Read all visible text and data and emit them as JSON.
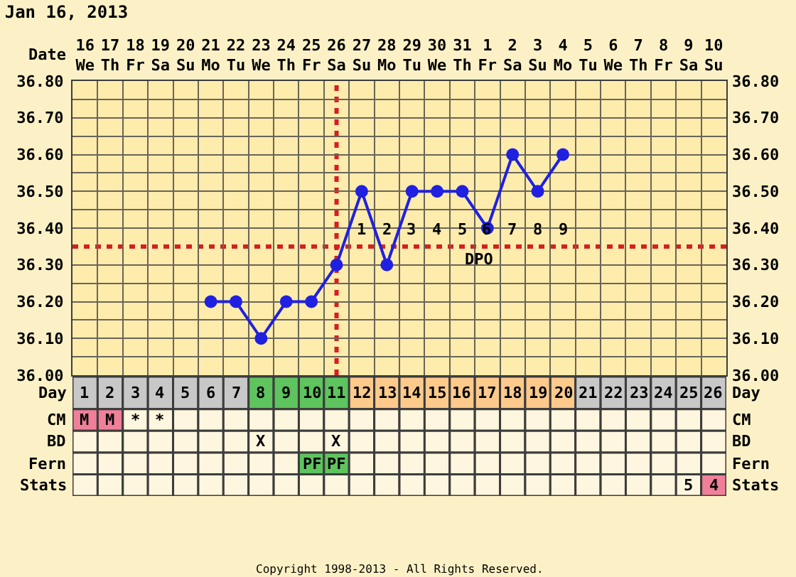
{
  "chart_data": [
    {
      "type": "line",
      "title": "Jan 16, 2013",
      "xlabel": "Date",
      "categories": [
        "16\nWe",
        "17\nTh",
        "18\nFr",
        "19\nSa",
        "20\nSu",
        "21\nMo",
        "22\nTu",
        "23\nWe",
        "24\nTh",
        "25\nFr",
        "26\nSa",
        "27\nSu",
        "28\nMo",
        "29\nTu",
        "30\nWe",
        "31\nTh",
        "1\nFr",
        "2\nSa",
        "3\nSu",
        "4\nMo",
        "5\nTu",
        "6\nWe",
        "7\nTh",
        "8\nFr",
        "9\nSa",
        "10\nSu"
      ],
      "series": [
        {
          "color": "#2020e0",
          "values": [
            null,
            null,
            null,
            null,
            null,
            36.2,
            36.2,
            36.1,
            36.2,
            36.2,
            36.3,
            36.5,
            36.3,
            36.5,
            36.5,
            36.5,
            36.4,
            36.6,
            36.5,
            36.6,
            null,
            null,
            null,
            null,
            null,
            null
          ]
        }
      ],
      "ylim": [
        36.0,
        36.8
      ],
      "yticks": [
        {
          "value": 36.0,
          "label": "36.00"
        },
        {
          "value": 36.05,
          "label": null
        },
        {
          "value": 36.1,
          "label": "36.10"
        },
        {
          "value": 36.15,
          "label": null
        },
        {
          "value": 36.2,
          "label": "36.20"
        },
        {
          "value": 36.25,
          "label": null
        },
        {
          "value": 36.3,
          "label": "36.30"
        },
        {
          "value": 36.4,
          "label": "36.40"
        },
        {
          "value": 36.45,
          "label": null
        },
        {
          "value": 36.5,
          "label": "36.50"
        },
        {
          "value": 36.55,
          "label": null
        },
        {
          "value": 36.6,
          "label": "36.60"
        },
        {
          "value": 36.65,
          "label": null
        },
        {
          "value": 36.7,
          "label": "36.70"
        },
        {
          "value": 36.75,
          "label": null
        },
        {
          "value": 36.8,
          "label": "36.80"
        }
      ],
      "y2lim": [
        36.0,
        36.8
      ],
      "y2ticks": [
        {
          "value": 36.0,
          "label": "36.00"
        },
        {
          "value": 36.05,
          "label": null
        },
        {
          "value": 36.1,
          "label": "36.10"
        },
        {
          "value": 36.15,
          "label": null
        },
        {
          "value": 36.2,
          "label": "36.20"
        },
        {
          "value": 36.25,
          "label": null
        },
        {
          "value": 36.3,
          "label": "36.30"
        },
        {
          "value": 36.4,
          "label": "36.40"
        },
        {
          "value": 36.45,
          "label": null
        },
        {
          "value": 36.5,
          "label": "36.50"
        },
        {
          "value": 36.55,
          "label": null
        },
        {
          "value": 36.6,
          "label": "36.60"
        },
        {
          "value": 36.65,
          "label": null
        },
        {
          "value": 36.7,
          "label": "36.70"
        },
        {
          "value": 36.75,
          "label": null
        },
        {
          "value": 36.8,
          "label": "36.80"
        }
      ],
      "grid": true,
      "marker": "circle",
      "line_style": "solid",
      "ref_lines": [
        {
          "axis": "x",
          "value": "26\nSa",
          "color": "#d42020",
          "line_style": "dotted"
        },
        {
          "axis": "y",
          "value": 36.35,
          "color": "#d42020",
          "line_style": "dotted"
        }
      ],
      "annotations": [
        {
          "text": "1",
          "x": "27\nSu",
          "y": 36.35
        },
        {
          "text": "2",
          "x": "28\nMo",
          "y": 36.35
        },
        {
          "text": "3",
          "x": "29\nTu",
          "y": 36.35
        },
        {
          "text": "4",
          "x": "30\nWe",
          "y": 36.35
        },
        {
          "text": "5",
          "x": "31\nTh",
          "y": 36.35
        },
        {
          "text": "6",
          "x": "1\nFr",
          "y": 36.35
        },
        {
          "text": "7",
          "x": "2\nSa",
          "y": 36.35
        },
        {
          "text": "8",
          "x": "3\nSu",
          "y": 36.35
        },
        {
          "text": "9",
          "x": "4\nMo",
          "y": 36.35
        },
        {
          "text": "DPO",
          "x": "31\nTh",
          "y": 36.35
        },
        "Copyright 1998-2013 - All Rights Reserved."
      ]
    },
    {
      "type": "heatmap",
      "categories": [
        null,
        null,
        null,
        null,
        null,
        null,
        null,
        null,
        null,
        null,
        null,
        null,
        null,
        null,
        null,
        null,
        null,
        null,
        null,
        null,
        null,
        null,
        null,
        null,
        null,
        null
      ],
      "y_categories": [
        "Day",
        "CM",
        "BD",
        "Fern",
        "Stats"
      ],
      "y2_categories": [
        "Day",
        "CM",
        "BD",
        "Fern",
        "Stats"
      ],
      "cells": [
        [
          null,
          null,
          null,
          null,
          null,
          null,
          null,
          null,
          null,
          null,
          null,
          null,
          null,
          null,
          null,
          null,
          null,
          null,
          null,
          null,
          null,
          null,
          null,
          null,
          null,
          null
        ],
        [
          null,
          null,
          null,
          null,
          null,
          null,
          null,
          null,
          null,
          null,
          null,
          null,
          null,
          null,
          null,
          null,
          null,
          null,
          null,
          null,
          null,
          null,
          null,
          null,
          null,
          null
        ],
        [
          null,
          null,
          null,
          null,
          null,
          null,
          null,
          null,
          null,
          null,
          null,
          null,
          null,
          null,
          null,
          null,
          null,
          null,
          null,
          null,
          null,
          null,
          null,
          null,
          null,
          null
        ],
        [
          null,
          null,
          null,
          null,
          null,
          null,
          null,
          null,
          null,
          null,
          null,
          null,
          null,
          null,
          null,
          null,
          null,
          null,
          null,
          null,
          null,
          null,
          null,
          null,
          null,
          null
        ],
        [
          null,
          null,
          null,
          null,
          null,
          null,
          null,
          null,
          null,
          null,
          null,
          null,
          null,
          null,
          null,
          null,
          null,
          null,
          null,
          null,
          null,
          null,
          null,
          null,
          null,
          null
        ]
      ],
      "cell_labels": [
        [
          "1",
          "2",
          "3",
          "4",
          "5",
          "6",
          "7",
          "8",
          "9",
          "10",
          "11",
          "12",
          "13",
          "14",
          "15",
          "16",
          "17",
          "18",
          "19",
          "20",
          "21",
          "22",
          "23",
          "24",
          "25",
          "26"
        ],
        [
          "M",
          "M",
          "*",
          "*",
          null,
          null,
          null,
          null,
          null,
          null,
          null,
          null,
          null,
          null,
          null,
          null,
          null,
          null,
          null,
          null,
          null,
          null,
          null,
          null,
          null,
          null
        ],
        [
          null,
          null,
          null,
          null,
          null,
          null,
          null,
          "X",
          null,
          null,
          "X",
          null,
          null,
          null,
          null,
          null,
          null,
          null,
          null,
          null,
          null,
          null,
          null,
          null,
          null,
          null
        ],
        [
          null,
          null,
          null,
          null,
          null,
          null,
          null,
          null,
          null,
          "PF",
          "PF",
          null,
          null,
          null,
          null,
          null,
          null,
          null,
          null,
          null,
          null,
          null,
          null,
          null,
          null,
          null
        ],
        [
          null,
          null,
          null,
          null,
          null,
          null,
          null,
          null,
          null,
          null,
          null,
          null,
          null,
          null,
          null,
          null,
          null,
          null,
          null,
          null,
          null,
          null,
          null,
          null,
          "5",
          "4"
        ]
      ],
      "colors": [
        [
          "#c8c8c8",
          "#c8c8c8",
          "#c8c8c8",
          "#c8c8c8",
          "#c8c8c8",
          "#c8c8c8",
          "#c8c8c8",
          "#5ec45e",
          "#5ec45e",
          "#5ec45e",
          "#5ec45e",
          "#fdca8c",
          "#fdca8c",
          "#fdca8c",
          "#fdca8c",
          "#fdca8c",
          "#fdca8c",
          "#fdca8c",
          "#fdca8c",
          "#fdca8c",
          "#c8c8c8",
          "#c8c8c8",
          "#c8c8c8",
          "#c8c8c8",
          "#c8c8c8",
          "#c8c8c8"
        ],
        [
          "#f0809a",
          "#f0809a",
          "#fef6de",
          "#fef6de",
          "#fef6de",
          "#fef6de",
          "#fef6de",
          "#fef6de",
          "#fef6de",
          "#fef6de",
          "#fef6de",
          "#fef6de",
          "#fef6de",
          "#fef6de",
          "#fef6de",
          "#fef6de",
          "#fef6de",
          "#fef6de",
          "#fef6de",
          "#fef6de",
          "#fef6de",
          "#fef6de",
          "#fef6de",
          "#fef6de",
          "#fef6de",
          "#fef6de"
        ],
        [
          "#fef6de",
          "#fef6de",
          "#fef6de",
          "#fef6de",
          "#fef6de",
          "#fef6de",
          "#fef6de",
          "#fef6de",
          "#fef6de",
          "#fef6de",
          "#fef6de",
          "#fef6de",
          "#fef6de",
          "#fef6de",
          "#fef6de",
          "#fef6de",
          "#fef6de",
          "#fef6de",
          "#fef6de",
          "#fef6de",
          "#fef6de",
          "#fef6de",
          "#fef6de",
          "#fef6de",
          "#fef6de",
          "#fef6de"
        ],
        [
          "#fef6de",
          "#fef6de",
          "#fef6de",
          "#fef6de",
          "#fef6de",
          "#fef6de",
          "#fef6de",
          "#fef6de",
          "#fef6de",
          "#5ec45e",
          "#5ec45e",
          "#fef6de",
          "#fef6de",
          "#fef6de",
          "#fef6de",
          "#fef6de",
          "#fef6de",
          "#fef6de",
          "#fef6de",
          "#fef6de",
          "#fef6de",
          "#fef6de",
          "#fef6de",
          "#fef6de",
          "#fef6de",
          "#fef6de"
        ],
        [
          "#fef6de",
          "#fef6de",
          "#fef6de",
          "#fef6de",
          "#fef6de",
          "#fef6de",
          "#fef6de",
          "#fef6de",
          "#fef6de",
          "#fef6de",
          "#fef6de",
          "#fef6de",
          "#fef6de",
          "#fef6de",
          "#fef6de",
          "#fef6de",
          "#fef6de",
          "#fef6de",
          "#fef6de",
          "#fef6de",
          "#fef6de",
          "#fef6de",
          "#fef6de",
          "#fef6de",
          "#fef6de",
          "#f0809a"
        ]
      ]
    }
  ]
}
